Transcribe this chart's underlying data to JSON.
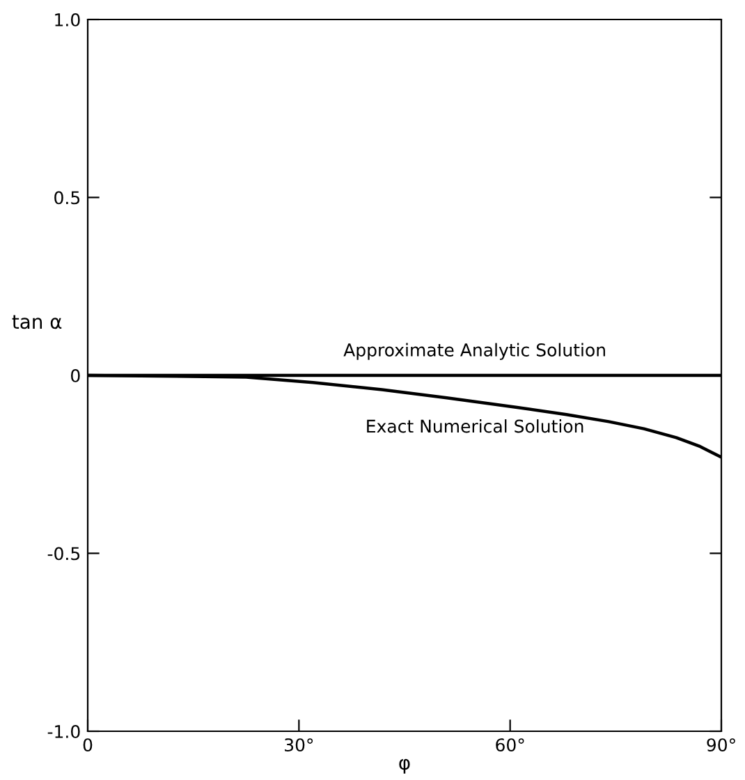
{
  "chart_data": {
    "type": "line",
    "xlabel": "φ",
    "ylabel": "tan α",
    "xlim": [
      0,
      90
    ],
    "ylim": [
      -1.0,
      1.0
    ],
    "xticks": [
      0,
      {
        "value": 30,
        "label": "30°"
      },
      {
        "value": 60,
        "label": "60°"
      },
      {
        "value": 90,
        "label": "90°"
      }
    ],
    "yticks": [
      {
        "value": -1.0,
        "label": "-1.0"
      },
      {
        "value": -0.5,
        "label": "-0.5"
      },
      0,
      {
        "value": 0.5,
        "label": "0.5"
      },
      {
        "value": 1.0,
        "label": "1.0"
      }
    ],
    "series": [
      {
        "color": "#000000",
        "x": [
          0,
          90
        ],
        "values": [
          0,
          0
        ]
      },
      {
        "color": "#000000",
        "x": [
          0,
          10,
          22.5,
          32,
          41.8,
          51,
          61,
          68,
          74,
          79,
          83.6,
          87,
          90
        ],
        "values": [
          0,
          -0.002,
          -0.005,
          -0.02,
          -0.04,
          -0.063,
          -0.09,
          -0.11,
          -0.13,
          -0.15,
          -0.175,
          -0.2,
          -0.23
        ]
      }
    ],
    "annotations": [
      {
        "text": "Approximate Analytic Solution",
        "x": 55,
        "y": 0
      },
      {
        "text": "Exact Numerical Solution",
        "x": 55,
        "y": -0.08
      }
    ],
    "grid": false,
    "legend": false,
    "marker": "none",
    "line_style": "solid"
  }
}
